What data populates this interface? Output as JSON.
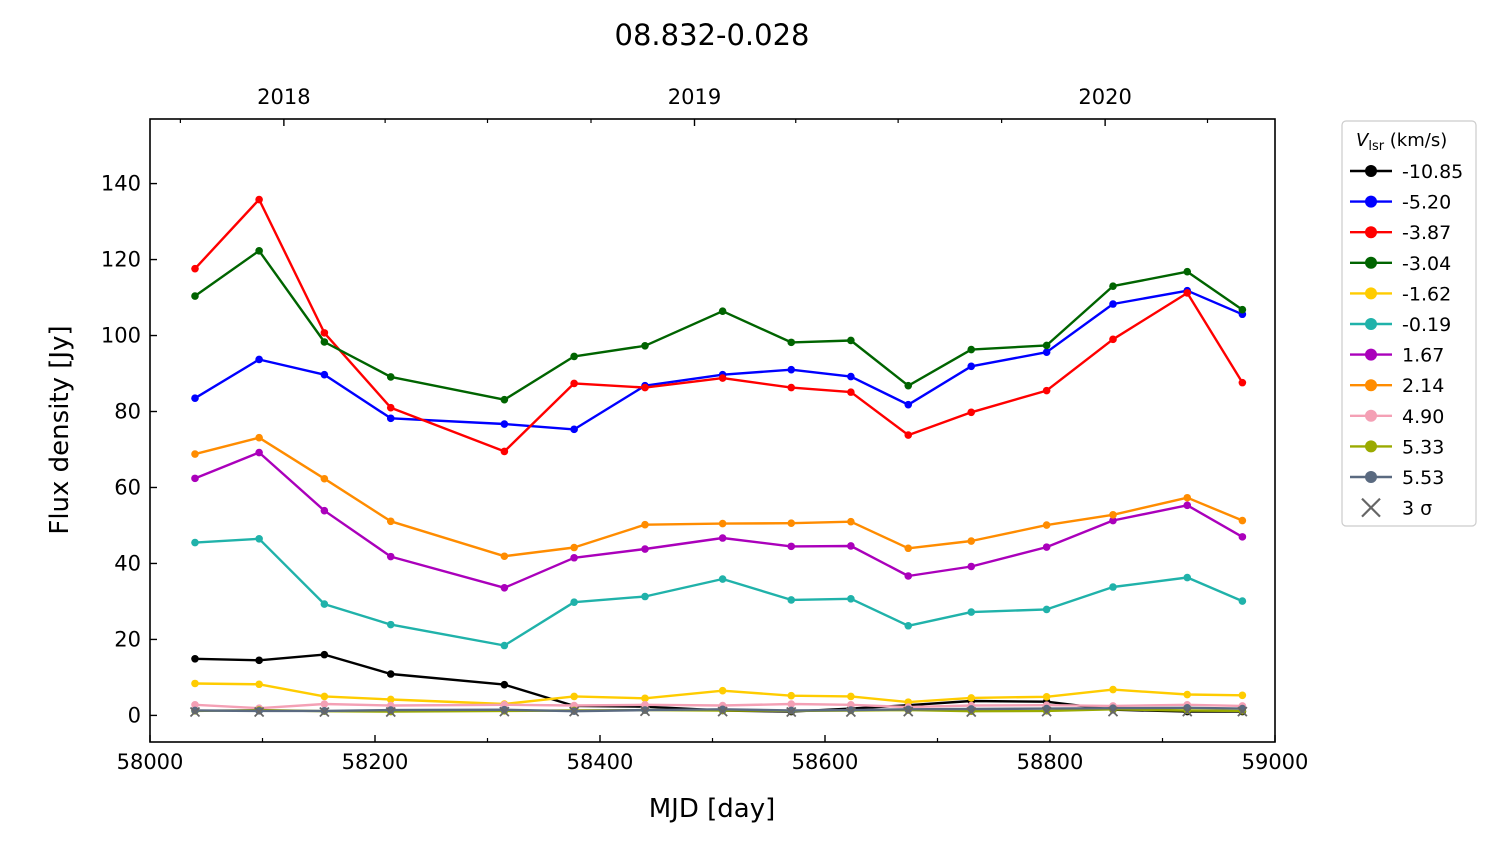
{
  "chart_data": {
    "type": "line",
    "title": "08.832-0.028",
    "xlabel": "MJD [day]",
    "ylabel": "Flux density [Jy]",
    "xlim": [
      58000,
      59000
    ],
    "ylim": [
      -7,
      157
    ],
    "xticks": [
      58000,
      58200,
      58400,
      58600,
      58800,
      59000
    ],
    "yticks": [
      0,
      20,
      40,
      60,
      80,
      100,
      120,
      140
    ],
    "top_axis": {
      "ticks": [
        {
          "mjd": 58119,
          "label": "2018"
        },
        {
          "mjd": 58484,
          "label": "2019"
        },
        {
          "mjd": 58849,
          "label": "2020"
        }
      ],
      "minor_ticks": [
        58027,
        58209,
        58300,
        58392,
        58574,
        58665,
        58757,
        58940
      ]
    },
    "legend": {
      "title_symbol": "V",
      "title_sub": "lsr",
      "title_unit": " (km/s)",
      "position": "outside-right",
      "sigma_label": "3 σ"
    },
    "x": [
      58040,
      58097,
      58155,
      58214,
      58315,
      58377,
      58440,
      58509,
      58570,
      58623,
      58674,
      58730,
      58797,
      58856,
      58922,
      58971
    ],
    "series": [
      {
        "name": "-10.85",
        "color": "#000000",
        "values": [
          14.9,
          14.5,
          16.0,
          10.9,
          8.1,
          2.5,
          2.3,
          1.3,
          1.0,
          1.8,
          2.7,
          3.8,
          3.6,
          1.5,
          1.0,
          1.0
        ]
      },
      {
        "name": "-5.20",
        "color": "#0000ff",
        "values": [
          83.5,
          93.7,
          89.7,
          78.2,
          76.7,
          75.3,
          86.8,
          89.7,
          91.0,
          89.2,
          81.8,
          91.9,
          95.6,
          108.3,
          111.8,
          105.6
        ]
      },
      {
        "name": "-3.87",
        "color": "#ff0000",
        "values": [
          117.6,
          135.8,
          100.7,
          81.0,
          69.5,
          87.4,
          86.3,
          88.8,
          86.3,
          85.1,
          73.8,
          79.8,
          85.5,
          99.0,
          111.2,
          87.6
        ]
      },
      {
        "name": "-3.04",
        "color": "#006400",
        "values": [
          110.4,
          122.3,
          98.3,
          89.1,
          83.1,
          94.5,
          97.3,
          106.4,
          98.2,
          98.7,
          86.8,
          96.3,
          97.4,
          113.0,
          116.8,
          106.8
        ]
      },
      {
        "name": "-1.62",
        "color": "#ffcc00",
        "values": [
          8.4,
          8.2,
          5.0,
          4.2,
          3.0,
          5.0,
          4.5,
          6.5,
          5.2,
          5.0,
          3.5,
          4.6,
          4.9,
          6.8,
          5.5,
          5.3
        ]
      },
      {
        "name": "-0.19",
        "color": "#20b2aa",
        "values": [
          45.5,
          46.5,
          29.3,
          23.9,
          18.4,
          29.8,
          31.3,
          35.9,
          30.4,
          30.7,
          23.6,
          27.2,
          27.9,
          33.8,
          36.3,
          30.1
        ]
      },
      {
        "name": "1.67",
        "color": "#aa00bb",
        "values": [
          62.4,
          69.2,
          53.9,
          41.8,
          33.6,
          41.5,
          43.8,
          46.7,
          44.5,
          44.6,
          36.7,
          39.2,
          44.3,
          51.3,
          55.3,
          47.0
        ]
      },
      {
        "name": "2.14",
        "color": "#ff8c00",
        "values": [
          68.8,
          73.1,
          62.3,
          51.1,
          41.9,
          44.2,
          50.2,
          50.5,
          50.6,
          51.0,
          44.0,
          45.9,
          50.1,
          52.8,
          57.3,
          51.3
        ]
      },
      {
        "name": "4.90",
        "color": "#f4a0b5",
        "values": [
          2.8,
          1.9,
          3.0,
          2.6,
          2.8,
          2.6,
          2.8,
          2.6,
          3.0,
          2.8,
          2.2,
          2.6,
          2.7,
          2.5,
          2.8,
          2.5
        ]
      },
      {
        "name": "5.33",
        "color": "#9aaa00",
        "values": [
          1.2,
          1.4,
          1.1,
          1.0,
          1.2,
          1.3,
          1.4,
          1.3,
          1.2,
          1.3,
          1.4,
          1.1,
          1.2,
          1.6,
          1.3,
          1.2
        ]
      },
      {
        "name": "5.53",
        "color": "#5a6a80",
        "values": [
          1.3,
          1.2,
          1.2,
          1.4,
          1.5,
          1.1,
          1.4,
          1.6,
          1.3,
          1.4,
          1.6,
          1.7,
          1.8,
          1.9,
          2.0,
          1.8
        ]
      }
    ],
    "sigma3": [
      0.9,
      0.9,
      0.9,
      0.9,
      1.0,
      1.0,
      1.1,
      1.0,
      0.9,
      0.9,
      1.0,
      0.9,
      1.0,
      1.0,
      1.0,
      1.0
    ],
    "sigma_color": "#666666"
  }
}
